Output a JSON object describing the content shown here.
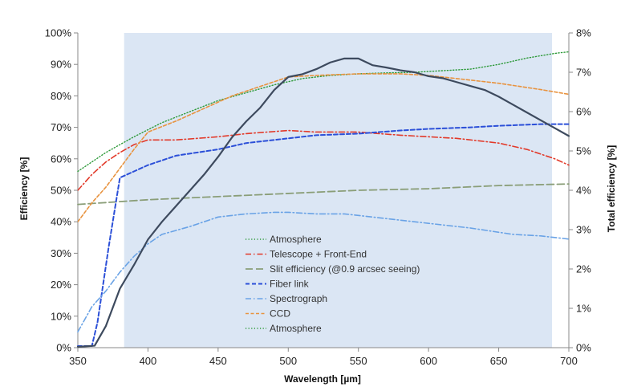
{
  "chart_data": {
    "type": "line",
    "xlabel": "Wavelength [µm]",
    "ylabel": "Efficiency [%]",
    "y2label": "Total efficiency [%]",
    "xlim": [
      350,
      700
    ],
    "ylim": [
      0,
      100
    ],
    "y2lim": [
      0,
      8
    ],
    "x_ticks": [
      350,
      400,
      450,
      500,
      550,
      600,
      650,
      700
    ],
    "y_ticks": [
      "0%",
      "10%",
      "20%",
      "30%",
      "40%",
      "50%",
      "60%",
      "70%",
      "80%",
      "90%",
      "100%"
    ],
    "y2_ticks": [
      "0%",
      "1%",
      "2%",
      "3%",
      "4%",
      "5%",
      "6%",
      "7%",
      "8%"
    ],
    "shaded_band": {
      "x_start": 383,
      "x_end": 688,
      "color": "#dbe6f4"
    },
    "grid": false,
    "legend_position": "center-bottom",
    "series": [
      {
        "name": "Atmosphere",
        "axis": "left",
        "color": "#2e9a3a",
        "dash": "dotted",
        "x": [
          350,
          370,
          390,
          410,
          430,
          450,
          470,
          490,
          510,
          530,
          550,
          570,
          590,
          610,
          630,
          650,
          670,
          690,
          700
        ],
        "y": [
          56,
          62,
          67,
          71.5,
          75,
          78.5,
          81,
          83.5,
          85.5,
          86.5,
          87,
          87.3,
          87.5,
          88,
          88.5,
          90,
          92,
          93.5,
          94
        ]
      },
      {
        "name": "Telescope + Front-End",
        "axis": "left",
        "color": "#e23a2a",
        "dash": "dashdot",
        "x": [
          350,
          360,
          370,
          380,
          390,
          400,
          420,
          450,
          470,
          500,
          520,
          550,
          580,
          600,
          620,
          650,
          670,
          690,
          700
        ],
        "y": [
          50,
          55,
          59,
          62,
          64.5,
          66,
          66,
          67,
          68,
          69,
          68.5,
          68.5,
          67.5,
          67,
          66.5,
          65,
          63,
          60,
          58
        ]
      },
      {
        "name": "Slit efficiency (@0.9 arcsec seeing)",
        "axis": "left",
        "color": "#8a9e78",
        "dash": "longdash",
        "x": [
          350,
          400,
          450,
          500,
          550,
          600,
          650,
          700
        ],
        "y": [
          45.5,
          47,
          48,
          49,
          50,
          50.5,
          51.5,
          52
        ]
      },
      {
        "name": "Fiber link",
        "axis": "left",
        "color": "#2b4fd8",
        "dash": "dashed",
        "x": [
          350,
          360,
          364,
          368,
          372,
          376,
          380,
          390,
          400,
          420,
          450,
          470,
          500,
          520,
          550,
          580,
          600,
          630,
          650,
          680,
          700
        ],
        "y": [
          0.5,
          0.5,
          8,
          20,
          32,
          43,
          54,
          56,
          58,
          61,
          63,
          65,
          66.5,
          67.5,
          68,
          69,
          69.5,
          70,
          70.5,
          71,
          71
        ]
      },
      {
        "name": "Spectrograph",
        "axis": "left",
        "color": "#6aa3e6",
        "dash": "dashdot",
        "x": [
          350,
          360,
          370,
          380,
          390,
          400,
          410,
          430,
          450,
          470,
          490,
          500,
          520,
          540,
          560,
          580,
          600,
          630,
          660,
          680,
          700
        ],
        "y": [
          5,
          13,
          18,
          24,
          29,
          33,
          36,
          38.5,
          41.5,
          42.5,
          43,
          43,
          42.5,
          42.5,
          41.5,
          40.5,
          39.5,
          38,
          36,
          35.5,
          34.5
        ]
      },
      {
        "name": "CCD",
        "axis": "left",
        "color": "#e8933f",
        "dash": "shortdash",
        "x": [
          350,
          360,
          370,
          380,
          390,
          400,
          420,
          440,
          460,
          480,
          500,
          520,
          550,
          580,
          600,
          630,
          650,
          680,
          700
        ],
        "y": [
          40,
          46,
          51,
          57,
          63,
          68.5,
          72,
          76,
          80,
          83,
          86,
          86.5,
          87,
          87,
          86.5,
          85,
          84,
          82,
          80.5
        ]
      },
      {
        "name": "Atmosphere",
        "axis": "left",
        "color": "#2e9a3a",
        "dash": "dotted",
        "x": [],
        "y": []
      },
      {
        "name": "Total efficiency",
        "axis": "right",
        "color": "#3d4a5e",
        "dash": "solid",
        "x": [
          350,
          362,
          370,
          380,
          390,
          400,
          410,
          420,
          430,
          440,
          450,
          460,
          470,
          480,
          490,
          500,
          510,
          520,
          530,
          540,
          550,
          560,
          570,
          580,
          590,
          600,
          610,
          620,
          630,
          640,
          650,
          660,
          670,
          680,
          690,
          700
        ],
        "y": [
          0.02,
          0.05,
          0.55,
          1.5,
          2.1,
          2.75,
          3.2,
          3.6,
          4.0,
          4.4,
          4.85,
          5.35,
          5.75,
          6.1,
          6.55,
          6.88,
          6.95,
          7.08,
          7.25,
          7.35,
          7.35,
          7.18,
          7.12,
          7.05,
          7.0,
          6.9,
          6.85,
          6.75,
          6.65,
          6.55,
          6.38,
          6.18,
          5.98,
          5.78,
          5.58,
          5.38
        ]
      }
    ]
  }
}
